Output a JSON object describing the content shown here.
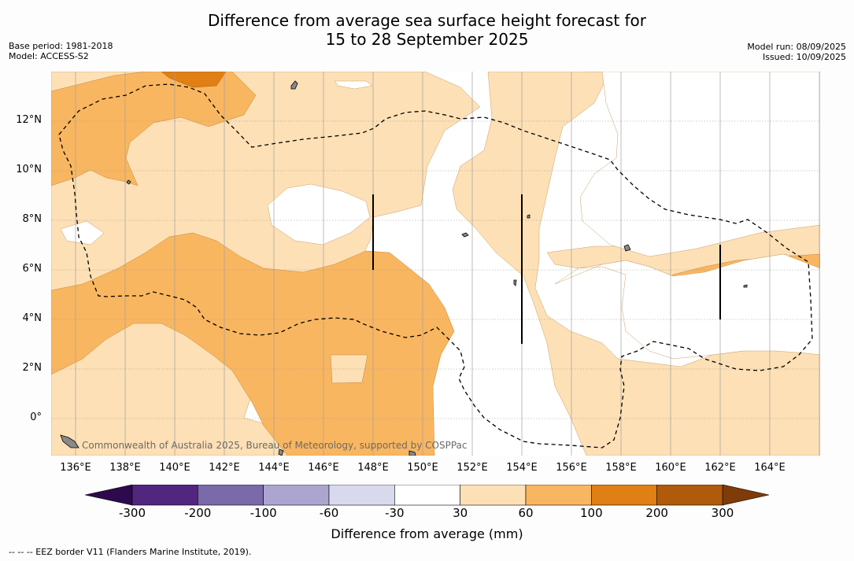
{
  "title": {
    "line1": "Difference from average sea surface height forecast for",
    "line2": "15 to 28 September 2025"
  },
  "meta_left": {
    "base_period": "Base period: 1981-2018",
    "model": "Model: ACCESS-S2"
  },
  "meta_right": {
    "model_run": "Model run: 08/09/2025",
    "issued": "Issued: 10/09/2025"
  },
  "lat_labels": [
    "12°N",
    "10°N",
    "8°N",
    "6°N",
    "4°N",
    "2°N",
    "0°"
  ],
  "lon_labels": [
    "136°E",
    "138°E",
    "140°E",
    "142°E",
    "144°E",
    "146°E",
    "148°E",
    "150°E",
    "152°E",
    "154°E",
    "156°E",
    "158°E",
    "160°E",
    "162°E",
    "164°E"
  ],
  "colorbar": {
    "ticks": [
      "-300",
      "-200",
      "-100",
      "-60",
      "-30",
      "30",
      "60",
      "100",
      "200",
      "300"
    ],
    "colors": [
      "#50267f",
      "#7a6aa9",
      "#aba5cf",
      "#d9d9ee",
      "#ffffff",
      "#fde0b5",
      "#f9b660",
      "#e07f13",
      "#b05b0c"
    ],
    "under_color": "#2d0a4d",
    "over_color": "#7f3b08",
    "label": "Difference from average (mm)"
  },
  "credit": "Commonwealth of Australia 2025, Bureau of Meteorology, supported by COSPPac",
  "footer": "--  --  -- EEZ border V11 (Flanders Marine Institute, 2019)."
}
